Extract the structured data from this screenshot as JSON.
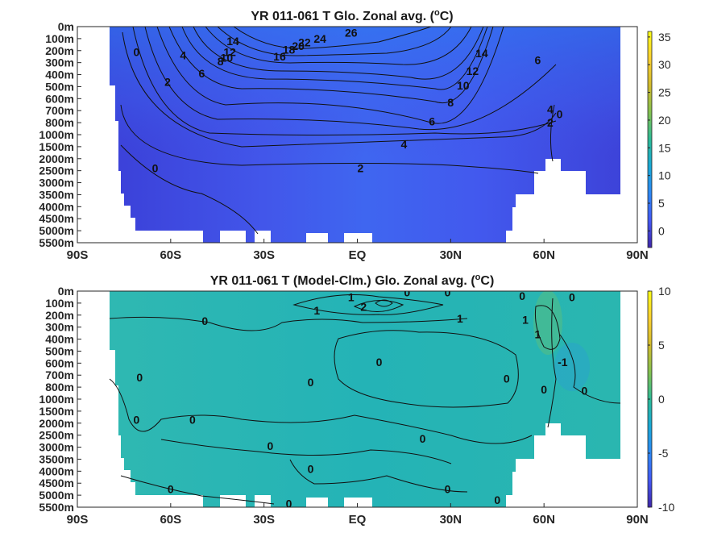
{
  "chart_data": [
    {
      "type": "heatmap",
      "title": "YR 011-061 T Glo. Zonal avg. (",
      "title_sup": "o",
      "title_tail": "C)",
      "x_ticks": [
        "90S",
        "60S",
        "30S",
        "EQ",
        "30N",
        "60N",
        "90N"
      ],
      "x_values": [
        -90,
        -60,
        -30,
        0,
        30,
        60,
        90
      ],
      "y_ticks": [
        "0m",
        "100m",
        "200m",
        "300m",
        "400m",
        "500m",
        "600m",
        "700m",
        "800m",
        "1000m",
        "1500m",
        "2000m",
        "2500m",
        "3000m",
        "3500m",
        "4000m",
        "4500m",
        "5000m",
        "5500m"
      ],
      "colorbar": {
        "min": -3,
        "max": 36,
        "ticks": [
          0,
          5,
          10,
          15,
          20,
          25,
          30,
          35
        ]
      },
      "colormap": [
        "#3e26a8",
        "#4257f4",
        "#2c87f4",
        "#18a8d6",
        "#2bba96",
        "#82c04f",
        "#d1ba2c",
        "#fbd02f",
        "#f9fb15"
      ],
      "grid": false,
      "contour_labels": [
        {
          "text": "26",
          "lon": -2,
          "depth_index": 0.5
        },
        {
          "text": "24",
          "lon": -12,
          "depth_index": 1.0
        },
        {
          "text": "22",
          "lon": -17,
          "depth_index": 1.3
        },
        {
          "text": "20",
          "lon": -19,
          "depth_index": 1.6
        },
        {
          "text": "18",
          "lon": -22,
          "depth_index": 1.9
        },
        {
          "text": "16",
          "lon": -25,
          "depth_index": 2.5
        },
        {
          "text": "14",
          "lon": -40,
          "depth_index": 1.2
        },
        {
          "text": "12",
          "lon": -41,
          "depth_index": 2.1
        },
        {
          "text": "10",
          "lon": -42,
          "depth_index": 2.6
        },
        {
          "text": "8",
          "lon": -44,
          "depth_index": 2.9
        },
        {
          "text": "6",
          "lon": -50,
          "depth_index": 3.9
        },
        {
          "text": "4",
          "lon": -56,
          "depth_index": 2.4
        },
        {
          "text": "2",
          "lon": -61,
          "depth_index": 4.6
        },
        {
          "text": "0",
          "lon": -71,
          "depth_index": 2.1
        },
        {
          "text": "14",
          "lon": 40,
          "depth_index": 2.2
        },
        {
          "text": "12",
          "lon": 37,
          "depth_index": 3.7
        },
        {
          "text": "10",
          "lon": 34,
          "depth_index": 4.9
        },
        {
          "text": "8",
          "lon": 30,
          "depth_index": 6.3
        },
        {
          "text": "6",
          "lon": 24,
          "depth_index": 7.9
        },
        {
          "text": "6",
          "lon": 58,
          "depth_index": 2.8
        },
        {
          "text": "4",
          "lon": 15,
          "depth_index": 9.8
        },
        {
          "text": "4",
          "lon": 62,
          "depth_index": 6.9
        },
        {
          "text": "0",
          "lon": 65,
          "depth_index": 7.3
        },
        {
          "text": "2",
          "lon": 62,
          "depth_index": 8.0
        },
        {
          "text": "2",
          "lon": 1,
          "depth_index": 11.8
        },
        {
          "text": "0",
          "lon": -65,
          "depth_index": 11.8
        }
      ]
    },
    {
      "type": "heatmap",
      "title": "YR 011-061 T (Model-Clm.) Glo. Zonal avg. (",
      "title_sup": "o",
      "title_tail": "C)",
      "x_ticks": [
        "90S",
        "60S",
        "30S",
        "EQ",
        "30N",
        "60N",
        "90N"
      ],
      "x_values": [
        -90,
        -60,
        -30,
        0,
        30,
        60,
        90
      ],
      "y_ticks": [
        "0m",
        "100m",
        "200m",
        "300m",
        "400m",
        "500m",
        "600m",
        "700m",
        "800m",
        "1000m",
        "1500m",
        "2000m",
        "2500m",
        "3000m",
        "3500m",
        "4000m",
        "4500m",
        "5000m",
        "5500m"
      ],
      "colorbar": {
        "min": -10,
        "max": 10,
        "ticks": [
          10,
          5,
          0,
          -5,
          -10
        ]
      },
      "colormap": [
        "#3e26a8",
        "#4257f4",
        "#2c87f4",
        "#18a8d6",
        "#2bba96",
        "#82c04f",
        "#d1ba2c",
        "#fbd02f",
        "#f9fb15"
      ],
      "grid": false,
      "contour_labels": [
        {
          "text": "1",
          "lon": -2,
          "depth_index": 0.5
        },
        {
          "text": "0",
          "lon": 16,
          "depth_index": 0.1
        },
        {
          "text": "0",
          "lon": 29,
          "depth_index": 0.1
        },
        {
          "text": "0",
          "lon": 53,
          "depth_index": 0.4
        },
        {
          "text": "0",
          "lon": 69,
          "depth_index": 0.5
        },
        {
          "text": "2",
          "lon": 2,
          "depth_index": 1.3
        },
        {
          "text": "1",
          "lon": -13,
          "depth_index": 1.6
        },
        {
          "text": "1",
          "lon": 33,
          "depth_index": 2.3
        },
        {
          "text": "1",
          "lon": 54,
          "depth_index": 2.4
        },
        {
          "text": "1",
          "lon": 58,
          "depth_index": 3.6
        },
        {
          "text": "0",
          "lon": -49,
          "depth_index": 2.5
        },
        {
          "text": "0",
          "lon": 7,
          "depth_index": 5.9
        },
        {
          "text": "-1",
          "lon": 66,
          "depth_index": 5.9
        },
        {
          "text": "0",
          "lon": -70,
          "depth_index": 7.2
        },
        {
          "text": "0",
          "lon": -15,
          "depth_index": 7.6
        },
        {
          "text": "0",
          "lon": 48,
          "depth_index": 7.3
        },
        {
          "text": "0",
          "lon": 60,
          "depth_index": 8.2
        },
        {
          "text": "0",
          "lon": 73,
          "depth_index": 8.3
        },
        {
          "text": "0",
          "lon": -71,
          "depth_index": 10.7
        },
        {
          "text": "0",
          "lon": -53,
          "depth_index": 10.7
        },
        {
          "text": "0",
          "lon": 21,
          "depth_index": 12.3
        },
        {
          "text": "0",
          "lon": -28,
          "depth_index": 12.9
        },
        {
          "text": "0",
          "lon": -15,
          "depth_index": 14.8
        },
        {
          "text": "0",
          "lon": -60,
          "depth_index": 16.5
        },
        {
          "text": "0",
          "lon": 29,
          "depth_index": 16.5
        },
        {
          "text": "0",
          "lon": 45,
          "depth_index": 17.4
        },
        {
          "text": "0",
          "lon": -22,
          "depth_index": 17.7
        }
      ]
    }
  ]
}
